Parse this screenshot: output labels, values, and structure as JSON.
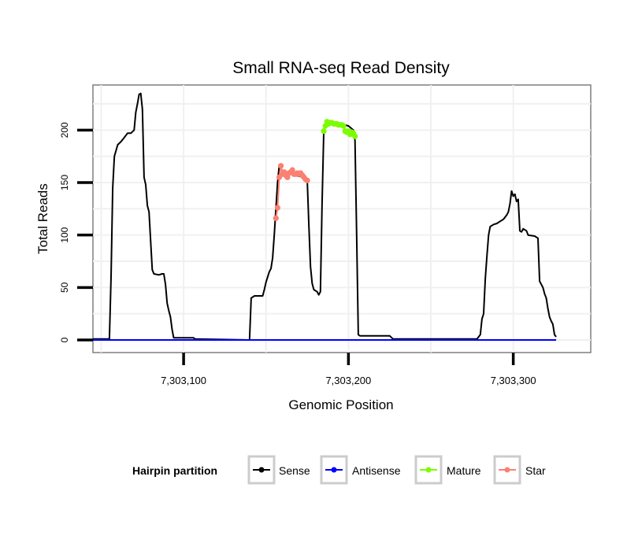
{
  "chart_data": {
    "type": "line",
    "title": "Small RNA-seq Read Density",
    "xlabel": "Genomic Position",
    "ylabel": "Total Reads",
    "xlim": [
      7303045,
      7303347
    ],
    "ylim": [
      -12,
      243
    ],
    "x_ticks": [
      {
        "value": 7303100,
        "label": "7,303,100"
      },
      {
        "value": 7303200,
        "label": "7,303,200"
      },
      {
        "value": 7303300,
        "label": "7,303,300"
      }
    ],
    "y_ticks": [
      {
        "value": 0,
        "label": "0"
      },
      {
        "value": 50,
        "label": "50"
      },
      {
        "value": 100,
        "label": "100"
      },
      {
        "value": 150,
        "label": "150"
      },
      {
        "value": 200,
        "label": "200"
      }
    ],
    "grid": true,
    "legend": {
      "title": "Hairpin partition",
      "position": "bottom",
      "entries": [
        {
          "label": "Sense",
          "color": "#000000"
        },
        {
          "label": "Antisense",
          "color": "#0000ff"
        },
        {
          "label": "Mature",
          "color": "#7cfc00"
        },
        {
          "label": "Star",
          "color": "#fa8072"
        }
      ]
    },
    "series": [
      {
        "name": "Sense",
        "color": "#000000",
        "points": [
          [
            7303045,
            1
          ],
          [
            7303055,
            1
          ],
          [
            7303056,
            60
          ],
          [
            7303057,
            145
          ],
          [
            7303058,
            175
          ],
          [
            7303060,
            186
          ],
          [
            7303062,
            189
          ],
          [
            7303064,
            193
          ],
          [
            7303066,
            197
          ],
          [
            7303068,
            197
          ],
          [
            7303070,
            200
          ],
          [
            7303071,
            217
          ],
          [
            7303072,
            225
          ],
          [
            7303073,
            234
          ],
          [
            7303074,
            235
          ],
          [
            7303075,
            220
          ],
          [
            7303076,
            155
          ],
          [
            7303077,
            148
          ],
          [
            7303078,
            128
          ],
          [
            7303079,
            122
          ],
          [
            7303080,
            95
          ],
          [
            7303081,
            67
          ],
          [
            7303082,
            63
          ],
          [
            7303085,
            62
          ],
          [
            7303087,
            63
          ],
          [
            7303088,
            63
          ],
          [
            7303089,
            53
          ],
          [
            7303090,
            35
          ],
          [
            7303091,
            28
          ],
          [
            7303092,
            22
          ],
          [
            7303093,
            10
          ],
          [
            7303094,
            2
          ],
          [
            7303100,
            2
          ],
          [
            7303106,
            2
          ],
          [
            7303107,
            1
          ],
          [
            7303140,
            0
          ],
          [
            7303141,
            40
          ],
          [
            7303143,
            42
          ],
          [
            7303148,
            42
          ],
          [
            7303149,
            48
          ],
          [
            7303150,
            55
          ],
          [
            7303152,
            65
          ],
          [
            7303153,
            68
          ],
          [
            7303154,
            78
          ],
          [
            7303155,
            100
          ],
          [
            7303156,
            125
          ],
          [
            7303157,
            150
          ],
          [
            7303158,
            166
          ],
          [
            7303159,
            163
          ],
          [
            7303162,
            158
          ],
          [
            7303165,
            158
          ],
          [
            7303170,
            156
          ],
          [
            7303174,
            155
          ],
          [
            7303175,
            152
          ],
          [
            7303176,
            110
          ],
          [
            7303177,
            70
          ],
          [
            7303178,
            54
          ],
          [
            7303179,
            48
          ],
          [
            7303181,
            46
          ],
          [
            7303182,
            43
          ],
          [
            7303183,
            46
          ],
          [
            7303184,
            130
          ],
          [
            7303185,
            197
          ],
          [
            7303186,
            205
          ],
          [
            7303190,
            208
          ],
          [
            7303195,
            206
          ],
          [
            7303200,
            204
          ],
          [
            7303203,
            200
          ],
          [
            7303204,
            190
          ],
          [
            7303205,
            100
          ],
          [
            7303206,
            5
          ],
          [
            7303207,
            4
          ],
          [
            7303225,
            4
          ],
          [
            7303227,
            1
          ],
          [
            7303278,
            1
          ],
          [
            7303280,
            5
          ],
          [
            7303281,
            20
          ],
          [
            7303282,
            25
          ],
          [
            7303283,
            58
          ],
          [
            7303284,
            80
          ],
          [
            7303285,
            100
          ],
          [
            7303286,
            108
          ],
          [
            7303287,
            109
          ],
          [
            7303288,
            110
          ],
          [
            7303290,
            111
          ],
          [
            7303292,
            113
          ],
          [
            7303294,
            115
          ],
          [
            7303296,
            119
          ],
          [
            7303297,
            122
          ],
          [
            7303298,
            130
          ],
          [
            7303299,
            142
          ],
          [
            7303300,
            137
          ],
          [
            7303301,
            139
          ],
          [
            7303302,
            132
          ],
          [
            7303303,
            134
          ],
          [
            7303304,
            104
          ],
          [
            7303305,
            103
          ],
          [
            7303306,
            106
          ],
          [
            7303308,
            104
          ],
          [
            7303309,
            100
          ],
          [
            7303313,
            99
          ],
          [
            7303315,
            97
          ],
          [
            7303316,
            56
          ],
          [
            7303317,
            53
          ],
          [
            7303318,
            50
          ],
          [
            7303319,
            44
          ],
          [
            7303320,
            40
          ],
          [
            7303321,
            30
          ],
          [
            7303322,
            22
          ],
          [
            7303323,
            18
          ],
          [
            7303324,
            15
          ],
          [
            7303325,
            5
          ],
          [
            7303326,
            3
          ]
        ]
      },
      {
        "name": "Antisense",
        "color": "#0000ff",
        "points": [
          [
            7303045,
            0
          ],
          [
            7303326,
            0
          ]
        ]
      },
      {
        "name": "Mature",
        "color": "#7cfc00",
        "points": [
          [
            7303185,
            199
          ],
          [
            7303186,
            204
          ],
          [
            7303187,
            208
          ],
          [
            7303188,
            206
          ],
          [
            7303189,
            207
          ],
          [
            7303190,
            207
          ],
          [
            7303191,
            206
          ],
          [
            7303192,
            206
          ],
          [
            7303193,
            206
          ],
          [
            7303194,
            205
          ],
          [
            7303195,
            205
          ],
          [
            7303196,
            205
          ],
          [
            7303197,
            204
          ],
          [
            7303198,
            199
          ],
          [
            7303199,
            198
          ],
          [
            7303200,
            199
          ],
          [
            7303201,
            196
          ],
          [
            7303202,
            198
          ],
          [
            7303203,
            197
          ],
          [
            7303204,
            194
          ]
        ]
      },
      {
        "name": "Star",
        "color": "#fa8072",
        "points": [
          [
            7303156,
            116
          ],
          [
            7303157,
            126
          ],
          [
            7303158,
            155
          ],
          [
            7303159,
            166
          ],
          [
            7303160,
            158
          ],
          [
            7303161,
            160
          ],
          [
            7303162,
            157
          ],
          [
            7303163,
            155
          ],
          [
            7303164,
            159
          ],
          [
            7303165,
            160
          ],
          [
            7303166,
            162
          ],
          [
            7303167,
            158
          ],
          [
            7303168,
            158
          ],
          [
            7303169,
            159
          ],
          [
            7303170,
            158
          ],
          [
            7303171,
            159
          ],
          [
            7303172,
            157
          ],
          [
            7303173,
            155
          ],
          [
            7303174,
            153
          ],
          [
            7303175,
            152
          ]
        ]
      }
    ]
  }
}
